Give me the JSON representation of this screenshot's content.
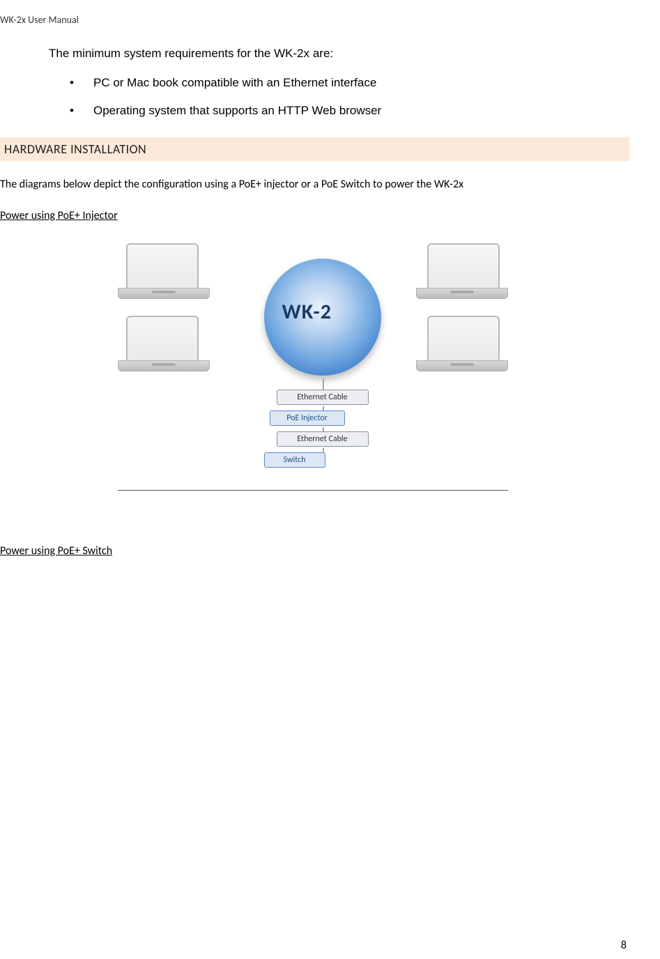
{
  "header": "WK-2x User Manual",
  "intro": "The minimum system requirements for the WK-2x are:",
  "bullets": [
    "PC or Mac book compatible with an Ethernet interface",
    "Operating system that supports an HTTP Web browser"
  ],
  "section_heading": "HARDWARE INSTALLATION",
  "body1": "The diagrams below depict the configuration using a PoE+ injector or a PoE Switch to power the WK-2x",
  "sub1": "Power using PoE+ Injector",
  "diagram": {
    "center_label": "WK-2",
    "chips": {
      "ethernet": "Ethernet Cable",
      "poe": "PoE Injector",
      "switch": "Switch"
    },
    "colors": {
      "circle_gradient": [
        "#e8f1fb",
        "#b8d3f0",
        "#6ea6e0",
        "#3d7bc9",
        "#2a5fa8"
      ],
      "chip_bg": "#eceef1",
      "chip_border": "#8a8f99",
      "chip_poe_bg": "#dde7f4",
      "chip_poe_border": "#5b86c2",
      "heading_bg": "#fde9d9"
    }
  },
  "sub2": "Power using PoE+ Switch",
  "page_number": "8"
}
